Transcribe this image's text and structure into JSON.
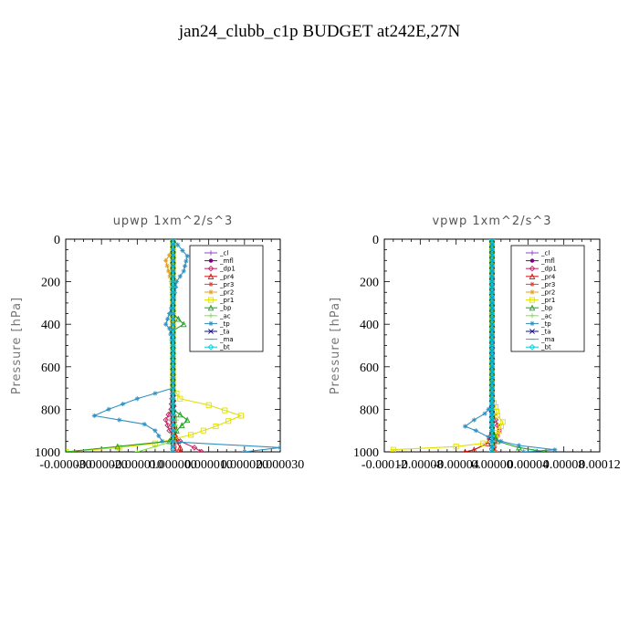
{
  "page": {
    "title": "jan24_clubb_c1p  BUDGET at242E,27N"
  },
  "chart_data": [
    {
      "type": "line",
      "title": "upwp   1xm^2/s^3",
      "ylabel": "Pressure [hPa]",
      "xlabel": "",
      "xlim": [
        -3e-05,
        3e-05
      ],
      "ylim": [
        1000,
        0
      ],
      "xticks": [
        -3e-05,
        -2e-05,
        -1e-05,
        0,
        1e-05,
        2e-05,
        3e-05
      ],
      "xtick_labels": [
        "-0.000030",
        "-0.000020",
        "-0.000010",
        "0.000000",
        "0.000010",
        "0.000020",
        "0.000030"
      ],
      "yticks": [
        0,
        200,
        400,
        600,
        800,
        1000
      ],
      "ytick_labels": [
        "0",
        "200",
        "400",
        "600",
        "800",
        "1000"
      ],
      "legend": "top-right",
      "series": [
        {
          "name": "_cl",
          "color": "#9040d0",
          "marker": "plus",
          "y": [
            0,
            100,
            300,
            500,
            700,
            850,
            950,
            1000
          ],
          "x": [
            0,
            0,
            0,
            0,
            0,
            0,
            0,
            0
          ]
        },
        {
          "name": "_mfl",
          "color": "#800080",
          "marker": "dot",
          "y": [
            0,
            100,
            300,
            500,
            700,
            850,
            950,
            1000
          ],
          "x": [
            0,
            0,
            0,
            0,
            0,
            0,
            0,
            0
          ]
        },
        {
          "name": "_dp1",
          "color": "#c02060",
          "marker": "diamond",
          "y": [
            0,
            400,
            700,
            800,
            850,
            900,
            950,
            980,
            1000
          ],
          "x": [
            0,
            0,
            0,
            -5e-07,
            -2e-06,
            -1e-06,
            2e-06,
            6e-06,
            8e-06
          ]
        },
        {
          "name": "_pr4",
          "color": "#d01010",
          "marker": "triangle",
          "y": [
            0,
            700,
            900,
            950,
            980,
            1000
          ],
          "x": [
            0,
            0,
            5e-07,
            1e-06,
            2e-06,
            2e-06
          ]
        },
        {
          "name": "_pr3",
          "color": "#e04040",
          "marker": "star",
          "y": [
            0,
            700,
            850,
            950,
            1000
          ],
          "x": [
            0,
            0,
            -5e-07,
            0,
            1e-06
          ]
        },
        {
          "name": "_pr2",
          "color": "#e0a020",
          "marker": "star",
          "y": [
            0,
            50,
            100,
            200,
            300,
            800,
            950,
            1000
          ],
          "x": [
            0,
            0,
            -2e-06,
            -5e-07,
            0,
            0,
            0,
            0
          ]
        },
        {
          "name": "_pr1",
          "color": "#e0e000",
          "marker": "square",
          "y": [
            0,
            700,
            750,
            780,
            830,
            880,
            920,
            960,
            980,
            1000
          ],
          "x": [
            0,
            0,
            2e-06,
            1e-05,
            1.9e-05,
            1.2e-05,
            5e-06,
            -5e-06,
            -1.5e-05,
            -3e-05
          ]
        },
        {
          "name": "_bp",
          "color": "#20a020",
          "marker": "triangle",
          "y": [
            0,
            350,
            400,
            430,
            500,
            800,
            850,
            900,
            950,
            1000
          ],
          "x": [
            0,
            0,
            3e-06,
            0,
            0,
            0,
            4e-06,
            1e-06,
            -1e-06,
            -3e-05
          ]
        },
        {
          "name": "_ac",
          "color": "#80e040",
          "marker": "plus",
          "y": [
            0,
            800,
            850,
            900,
            950,
            1000
          ],
          "x": [
            0,
            0,
            1e-06,
            5e-07,
            0,
            -1e-05
          ]
        },
        {
          "name": "_tp",
          "color": "#3090c0",
          "marker": "star",
          "y": [
            0,
            80,
            150,
            200,
            300,
            400,
            420,
            500,
            700,
            750,
            800,
            830,
            850,
            870,
            900,
            950,
            980,
            1000
          ],
          "x": [
            0,
            4e-06,
            3e-06,
            1e-06,
            0,
            -2e-06,
            -1e-06,
            0,
            0,
            -1e-05,
            -1.8e-05,
            -2.2e-05,
            -1.5e-05,
            -8e-06,
            -5e-06,
            -3e-06,
            3e-05,
            2e-05
          ]
        },
        {
          "name": "_ta",
          "color": "#101080",
          "marker": "cross",
          "y": [
            0,
            500,
            800,
            900,
            950,
            1000
          ],
          "x": [
            0,
            0,
            0,
            0,
            0,
            0
          ]
        },
        {
          "name": "_ma",
          "color": "#20b0b0",
          "marker": "dash",
          "y": [
            0,
            500,
            900,
            1000
          ],
          "x": [
            0,
            0,
            0,
            0
          ]
        },
        {
          "name": "_bt",
          "color": "#00d0e0",
          "marker": "diamond",
          "y": [
            0,
            500,
            1000
          ],
          "x": [
            0,
            0,
            0
          ]
        }
      ]
    },
    {
      "type": "line",
      "title": "vpwp   1xm^2/s^3",
      "ylabel": "Pressure [hPa]",
      "xlabel": "",
      "xlim": [
        -0.00012,
        0.00012
      ],
      "ylim": [
        1000,
        0
      ],
      "xticks": [
        -0.00012,
        -8e-05,
        -4e-05,
        0,
        4e-05,
        8e-05,
        0.00012
      ],
      "xtick_labels": [
        "-0.00012",
        "-0.00008",
        "-0.00004",
        "0.00000",
        "0.00004",
        "0.00008",
        "0.00012"
      ],
      "yticks": [
        0,
        200,
        400,
        600,
        800,
        1000
      ],
      "ytick_labels": [
        "0",
        "200",
        "400",
        "600",
        "800",
        "1000"
      ],
      "legend": "top-right",
      "series": [
        {
          "name": "_cl",
          "color": "#9040d0",
          "marker": "plus",
          "y": [
            0,
            200,
            400,
            600,
            800,
            900,
            1000
          ],
          "x": [
            0,
            0,
            0,
            0,
            0,
            0,
            0
          ]
        },
        {
          "name": "_mfl",
          "color": "#800080",
          "marker": "dot",
          "y": [
            0,
            200,
            400,
            600,
            800,
            900,
            1000
          ],
          "x": [
            0,
            0,
            0,
            0,
            0,
            0,
            0
          ]
        },
        {
          "name": "_dp1",
          "color": "#c02060",
          "marker": "diamond",
          "y": [
            0,
            800,
            850,
            900,
            950,
            980,
            1000
          ],
          "x": [
            0,
            0,
            4e-06,
            8e-06,
            4e-06,
            2e-06,
            1e-06
          ]
        },
        {
          "name": "_pr4",
          "color": "#d01010",
          "marker": "triangle",
          "y": [
            0,
            900,
            960,
            990,
            1000
          ],
          "x": [
            0,
            0,
            -5e-06,
            -2e-05,
            -3e-05
          ]
        },
        {
          "name": "_pr3",
          "color": "#e04040",
          "marker": "star",
          "y": [
            0,
            850,
            950,
            1000
          ],
          "x": [
            0,
            0,
            2e-06,
            4e-06
          ]
        },
        {
          "name": "_pr2",
          "color": "#e0a020",
          "marker": "star",
          "y": [
            0,
            850,
            950,
            1000
          ],
          "x": [
            0,
            0,
            0,
            0
          ]
        },
        {
          "name": "_pr1",
          "color": "#e0e000",
          "marker": "square",
          "y": [
            0,
            750,
            790,
            830,
            860,
            900,
            940,
            960,
            975,
            990,
            1000
          ],
          "x": [
            0,
            0,
            4e-06,
            6e-06,
            1.2e-05,
            8e-06,
            4e-06,
            -1e-05,
            -4e-05,
            -0.00011,
            -0.00011
          ]
        },
        {
          "name": "_bp",
          "color": "#20a020",
          "marker": "triangle",
          "y": [
            0,
            900,
            950,
            980,
            1000
          ],
          "x": [
            0,
            0,
            6e-06,
            3e-05,
            6e-05
          ]
        },
        {
          "name": "_ac",
          "color": "#80e040",
          "marker": "plus",
          "y": [
            0,
            900,
            1000
          ],
          "x": [
            0,
            0,
            2e-06
          ]
        },
        {
          "name": "_tp",
          "color": "#3090c0",
          "marker": "star",
          "y": [
            0,
            780,
            820,
            850,
            880,
            900,
            930,
            950,
            970,
            990,
            1000
          ],
          "x": [
            0,
            0,
            -8e-06,
            -2e-05,
            -3e-05,
            -1.8e-05,
            -4e-06,
            1e-05,
            3e-05,
            7e-05,
            3.5e-05
          ]
        },
        {
          "name": "_ta",
          "color": "#101080",
          "marker": "cross",
          "y": [
            0,
            500,
            1000
          ],
          "x": [
            0,
            0,
            0
          ]
        },
        {
          "name": "_ma",
          "color": "#20b0b0",
          "marker": "dash",
          "y": [
            0,
            500,
            1000
          ],
          "x": [
            0,
            0,
            0
          ]
        },
        {
          "name": "_bt",
          "color": "#00d0e0",
          "marker": "diamond",
          "y": [
            0,
            500,
            1000
          ],
          "x": [
            0,
            0,
            0
          ]
        }
      ]
    }
  ]
}
